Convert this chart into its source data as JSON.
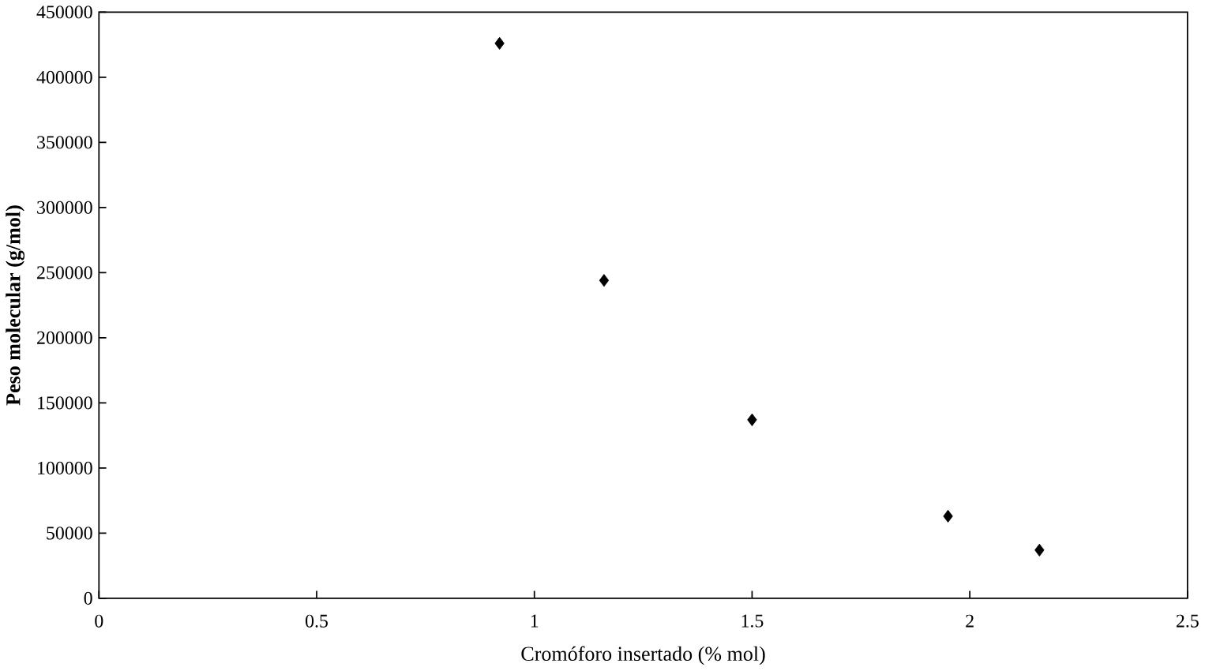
{
  "chart_data": {
    "type": "scatter",
    "xlabel": "Cromóforo insertado (% mol)",
    "ylabel": "Peso molecular (g/mol)",
    "x": [
      0.92,
      1.16,
      1.5,
      1.95,
      2.16
    ],
    "values": [
      426000,
      244000,
      137000,
      63000,
      37000
    ],
    "color": "#000000",
    "marker": "diamond",
    "grid": false,
    "xlim": [
      0,
      2.5
    ],
    "xticks": [
      0,
      0.5,
      1,
      1.5,
      2,
      2.5
    ],
    "ylim": [
      0,
      450000
    ],
    "yticks": [
      0,
      50000,
      100000,
      150000,
      200000,
      250000,
      300000,
      350000,
      400000,
      450000
    ]
  }
}
